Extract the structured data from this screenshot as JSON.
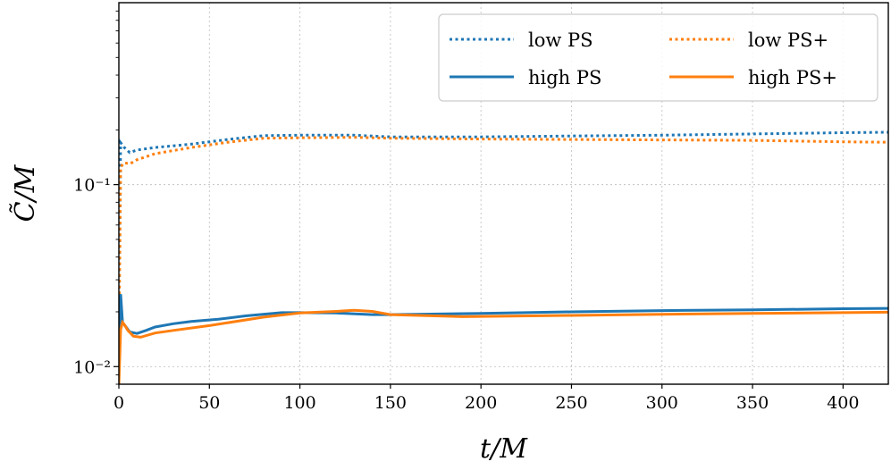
{
  "chart_data": {
    "type": "line",
    "xlabel": "t/M",
    "ylabel": "C̃/M",
    "xlim": [
      0,
      425
    ],
    "ylim": [
      0.008,
      1.0
    ],
    "yscale": "log",
    "grid": true,
    "legend_position": "top-right",
    "xticks": [
      0,
      50,
      100,
      150,
      200,
      250,
      300,
      350,
      400
    ],
    "yticks": [
      {
        "value": 0.1,
        "label": "10⁻¹"
      },
      {
        "value": 0.01,
        "label": "10⁻²"
      }
    ],
    "series": [
      {
        "name": "low PS",
        "color": "#1f77b4",
        "style": "dotted",
        "x": [
          0,
          1,
          3,
          6,
          10,
          20,
          40,
          60,
          80,
          100,
          130,
          150,
          200,
          250,
          300,
          350,
          400,
          425
        ],
        "y": [
          0.02,
          0.17,
          0.16,
          0.15,
          0.155,
          0.16,
          0.167,
          0.177,
          0.186,
          0.187,
          0.187,
          0.183,
          0.183,
          0.185,
          0.187,
          0.19,
          0.193,
          0.194
        ]
      },
      {
        "name": "low PS+",
        "color": "#ff7f0e",
        "style": "dotted",
        "x": [
          0,
          1,
          3,
          6,
          10,
          20,
          40,
          60,
          80,
          100,
          130,
          150,
          200,
          250,
          300,
          350,
          400,
          425
        ],
        "y": [
          0.012,
          0.125,
          0.132,
          0.13,
          0.137,
          0.148,
          0.16,
          0.171,
          0.18,
          0.181,
          0.182,
          0.18,
          0.178,
          0.177,
          0.176,
          0.175,
          0.172,
          0.171
        ]
      },
      {
        "name": "high PS",
        "color": "#1f77b4",
        "style": "solid",
        "x": [
          0,
          1,
          2,
          4,
          6,
          10,
          15,
          20,
          30,
          40,
          55,
          70,
          90,
          100,
          120,
          140,
          150,
          200,
          250,
          300,
          350,
          400,
          425
        ],
        "y": [
          0.01,
          0.025,
          0.0175,
          0.0165,
          0.0155,
          0.0152,
          0.0158,
          0.0165,
          0.0172,
          0.0177,
          0.0182,
          0.019,
          0.0198,
          0.0198,
          0.0197,
          0.0193,
          0.0193,
          0.0196,
          0.02,
          0.0203,
          0.0205,
          0.0208,
          0.0209
        ]
      },
      {
        "name": "high PS+",
        "color": "#ff7f0e",
        "style": "solid",
        "x": [
          0,
          1,
          2,
          3,
          5,
          8,
          12,
          20,
          30,
          50,
          80,
          100,
          120,
          130,
          140,
          150,
          190,
          250,
          300,
          350,
          400,
          425
        ],
        "y": [
          0.008,
          0.016,
          0.0175,
          0.017,
          0.0158,
          0.0147,
          0.0145,
          0.0153,
          0.0158,
          0.0168,
          0.0187,
          0.0197,
          0.0201,
          0.0204,
          0.0201,
          0.0193,
          0.0188,
          0.0191,
          0.0194,
          0.0196,
          0.0198,
          0.0199
        ]
      }
    ]
  }
}
